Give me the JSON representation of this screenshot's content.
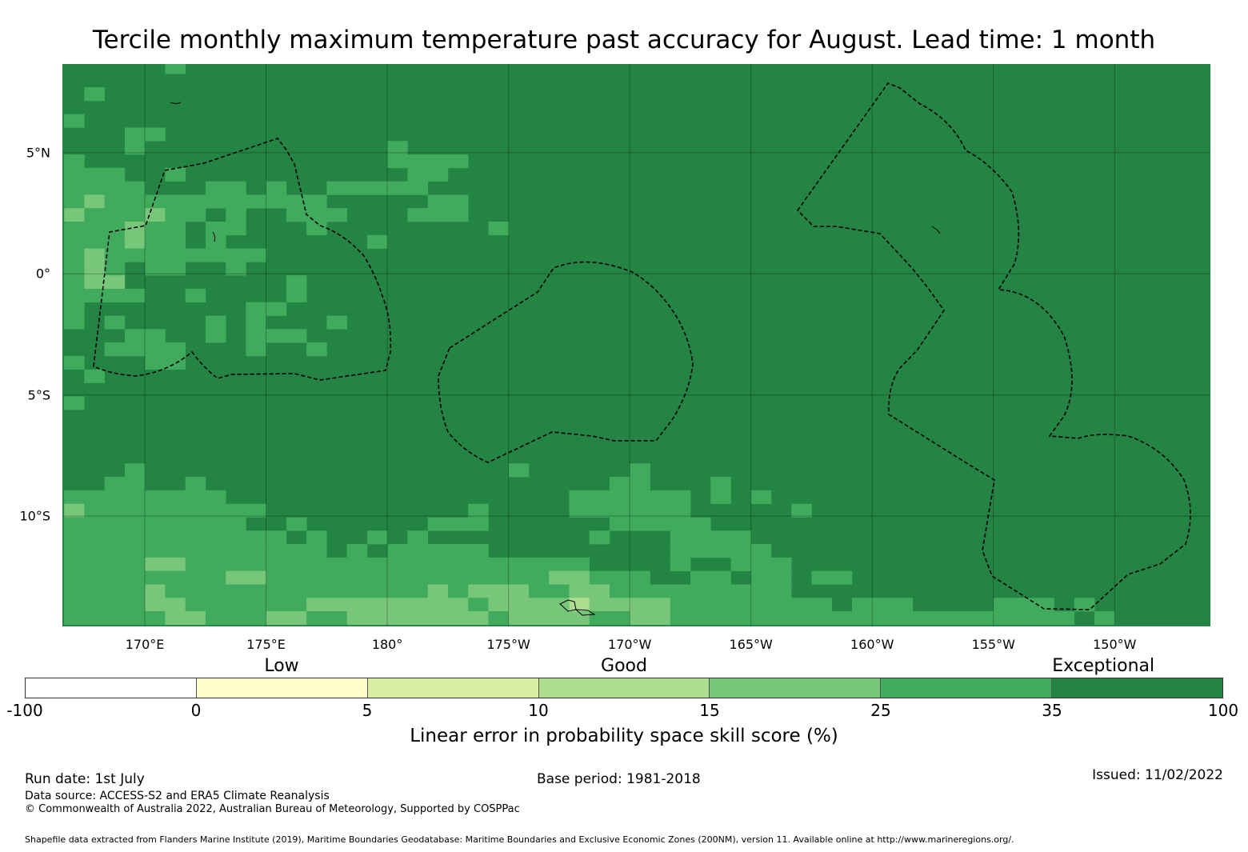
{
  "title": "Tercile monthly maximum temperature past accuracy for August. Lead time: 1 month",
  "map": {
    "lon_range": [
      166.6,
      213.95
    ],
    "lat_range": [
      -14.55,
      8.66
    ],
    "lon_ticks": [
      {
        "value": 170,
        "label": "170°E"
      },
      {
        "value": 175,
        "label": "175°E"
      },
      {
        "value": 180,
        "label": "180°"
      },
      {
        "value": 185,
        "label": "175°W"
      },
      {
        "value": 190,
        "label": "170°W"
      },
      {
        "value": 195,
        "label": "165°W"
      },
      {
        "value": 200,
        "label": "160°W"
      },
      {
        "value": 205,
        "label": "155°W"
      },
      {
        "value": 210,
        "label": "150°W"
      }
    ],
    "lat_ticks": [
      {
        "value": 5,
        "label": "5°N"
      },
      {
        "value": 0,
        "label": "0°"
      },
      {
        "value": -5,
        "label": "5°S"
      },
      {
        "value": -10,
        "label": "10°S"
      }
    ],
    "grid": {
      "lon_start": 166.67,
      "lat_start": 8.81,
      "dlon": 0.8333,
      "dlat": 0.5545,
      "default": "D"
    },
    "category_colors": {
      "D": "#238443",
      "M": "#41ab5d",
      "L": "#78c679",
      "P": "#addd8e"
    },
    "cells": [
      [
        0,
        5,
        5,
        "M"
      ],
      [
        2,
        1,
        1,
        "M"
      ],
      [
        4,
        0,
        0,
        "M"
      ],
      [
        5,
        3,
        4,
        "M"
      ],
      [
        6,
        3,
        3,
        "M"
      ],
      [
        6,
        16,
        16,
        "M"
      ],
      [
        7,
        0,
        0,
        "M"
      ],
      [
        7,
        16,
        19,
        "M"
      ],
      [
        8,
        0,
        2,
        "M"
      ],
      [
        8,
        5,
        5,
        "M"
      ],
      [
        8,
        17,
        18,
        "M"
      ],
      [
        9,
        0,
        3,
        "M"
      ],
      [
        9,
        7,
        8,
        "M"
      ],
      [
        9,
        10,
        10,
        "M"
      ],
      [
        9,
        13,
        17,
        "M"
      ],
      [
        10,
        0,
        0,
        "M"
      ],
      [
        10,
        1,
        1,
        "L"
      ],
      [
        10,
        2,
        12,
        "M"
      ],
      [
        10,
        18,
        19,
        "M"
      ],
      [
        11,
        0,
        0,
        "L"
      ],
      [
        11,
        1,
        3,
        "M"
      ],
      [
        11,
        4,
        4,
        "L"
      ],
      [
        11,
        5,
        6,
        "M"
      ],
      [
        11,
        8,
        8,
        "M"
      ],
      [
        11,
        11,
        13,
        "M"
      ],
      [
        11,
        17,
        19,
        "M"
      ],
      [
        12,
        0,
        2,
        "M"
      ],
      [
        12,
        3,
        3,
        "L"
      ],
      [
        12,
        4,
        5,
        "M"
      ],
      [
        12,
        7,
        8,
        "M"
      ],
      [
        12,
        12,
        12,
        "M"
      ],
      [
        12,
        21,
        21,
        "M"
      ],
      [
        13,
        0,
        2,
        "M"
      ],
      [
        13,
        3,
        3,
        "L"
      ],
      [
        13,
        4,
        5,
        "M"
      ],
      [
        13,
        7,
        7,
        "M"
      ],
      [
        13,
        15,
        15,
        "M"
      ],
      [
        14,
        0,
        0,
        "M"
      ],
      [
        14,
        1,
        1,
        "L"
      ],
      [
        14,
        2,
        9,
        "M"
      ],
      [
        15,
        0,
        0,
        "M"
      ],
      [
        15,
        1,
        1,
        "L"
      ],
      [
        15,
        2,
        2,
        "M"
      ],
      [
        15,
        4,
        5,
        "M"
      ],
      [
        15,
        8,
        8,
        "M"
      ],
      [
        16,
        0,
        0,
        "M"
      ],
      [
        16,
        1,
        2,
        "L"
      ],
      [
        16,
        11,
        11,
        "M"
      ],
      [
        17,
        0,
        3,
        "M"
      ],
      [
        17,
        6,
        6,
        "M"
      ],
      [
        17,
        11,
        11,
        "M"
      ],
      [
        18,
        0,
        0,
        "M"
      ],
      [
        18,
        9,
        10,
        "M"
      ],
      [
        19,
        0,
        0,
        "M"
      ],
      [
        19,
        2,
        2,
        "M"
      ],
      [
        19,
        7,
        7,
        "M"
      ],
      [
        19,
        9,
        9,
        "M"
      ],
      [
        19,
        13,
        13,
        "M"
      ],
      [
        20,
        3,
        4,
        "M"
      ],
      [
        20,
        7,
        7,
        "M"
      ],
      [
        20,
        9,
        11,
        "M"
      ],
      [
        21,
        2,
        5,
        "M"
      ],
      [
        21,
        9,
        9,
        "M"
      ],
      [
        21,
        12,
        12,
        "M"
      ],
      [
        22,
        0,
        0,
        "M"
      ],
      [
        22,
        4,
        5,
        "M"
      ],
      [
        23,
        1,
        1,
        "M"
      ],
      [
        25,
        0,
        0,
        "M"
      ],
      [
        30,
        3,
        3,
        "M"
      ],
      [
        30,
        22,
        22,
        "M"
      ],
      [
        30,
        28,
        28,
        "M"
      ],
      [
        31,
        2,
        3,
        "M"
      ],
      [
        31,
        6,
        6,
        "M"
      ],
      [
        31,
        27,
        28,
        "M"
      ],
      [
        31,
        32,
        32,
        "M"
      ],
      [
        32,
        0,
        7,
        "M"
      ],
      [
        32,
        25,
        30,
        "M"
      ],
      [
        32,
        32,
        32,
        "M"
      ],
      [
        32,
        34,
        34,
        "M"
      ],
      [
        33,
        0,
        0,
        "L"
      ],
      [
        33,
        1,
        9,
        "M"
      ],
      [
        33,
        20,
        20,
        "M"
      ],
      [
        33,
        25,
        30,
        "M"
      ],
      [
        33,
        36,
        36,
        "M"
      ],
      [
        34,
        0,
        8,
        "M"
      ],
      [
        34,
        11,
        11,
        "M"
      ],
      [
        34,
        18,
        20,
        "M"
      ],
      [
        34,
        27,
        31,
        "M"
      ],
      [
        35,
        0,
        10,
        "M"
      ],
      [
        35,
        12,
        12,
        "M"
      ],
      [
        35,
        15,
        15,
        "M"
      ],
      [
        35,
        17,
        17,
        "M"
      ],
      [
        35,
        26,
        26,
        "M"
      ],
      [
        35,
        30,
        33,
        "M"
      ],
      [
        36,
        0,
        12,
        "M"
      ],
      [
        36,
        14,
        14,
        "M"
      ],
      [
        36,
        16,
        20,
        "M"
      ],
      [
        36,
        30,
        34,
        "M"
      ],
      [
        37,
        0,
        3,
        "M"
      ],
      [
        37,
        4,
        5,
        "L"
      ],
      [
        37,
        6,
        25,
        "M"
      ],
      [
        37,
        30,
        30,
        "M"
      ],
      [
        37,
        33,
        35,
        "M"
      ],
      [
        38,
        0,
        7,
        "M"
      ],
      [
        38,
        8,
        9,
        "L"
      ],
      [
        38,
        10,
        23,
        "M"
      ],
      [
        38,
        24,
        25,
        "L"
      ],
      [
        38,
        26,
        28,
        "M"
      ],
      [
        38,
        31,
        32,
        "M"
      ],
      [
        38,
        34,
        35,
        "M"
      ],
      [
        38,
        37,
        38,
        "M"
      ],
      [
        39,
        0,
        3,
        "M"
      ],
      [
        39,
        4,
        4,
        "L"
      ],
      [
        39,
        5,
        17,
        "M"
      ],
      [
        39,
        18,
        18,
        "L"
      ],
      [
        39,
        19,
        19,
        "M"
      ],
      [
        39,
        20,
        22,
        "L"
      ],
      [
        39,
        23,
        24,
        "M"
      ],
      [
        39,
        25,
        26,
        "L"
      ],
      [
        39,
        27,
        35,
        "M"
      ],
      [
        40,
        0,
        3,
        "M"
      ],
      [
        40,
        4,
        5,
        "L"
      ],
      [
        40,
        6,
        11,
        "M"
      ],
      [
        40,
        12,
        19,
        "L"
      ],
      [
        40,
        20,
        20,
        "M"
      ],
      [
        40,
        21,
        24,
        "L"
      ],
      [
        40,
        25,
        25,
        "P"
      ],
      [
        40,
        26,
        29,
        "L"
      ],
      [
        40,
        30,
        37,
        "M"
      ],
      [
        40,
        39,
        41,
        "M"
      ],
      [
        40,
        46,
        48,
        "M"
      ],
      [
        40,
        50,
        50,
        "M"
      ],
      [
        41,
        0,
        4,
        "M"
      ],
      [
        41,
        5,
        6,
        "L"
      ],
      [
        41,
        7,
        9,
        "M"
      ],
      [
        41,
        10,
        11,
        "L"
      ],
      [
        41,
        12,
        13,
        "M"
      ],
      [
        41,
        14,
        20,
        "L"
      ],
      [
        41,
        21,
        21,
        "M"
      ],
      [
        41,
        22,
        25,
        "L"
      ],
      [
        41,
        26,
        27,
        "M"
      ],
      [
        41,
        28,
        29,
        "L"
      ],
      [
        41,
        30,
        49,
        "M"
      ],
      [
        41,
        51,
        51,
        "M"
      ]
    ]
  },
  "colorbar": {
    "colors": [
      "#ffffff",
      "#ffffcc",
      "#d9f0a3",
      "#addd8e",
      "#78c679",
      "#41ab5d",
      "#238443"
    ],
    "bounds": [
      "-100",
      "0",
      "5",
      "10",
      "15",
      "25",
      "35",
      "100"
    ],
    "categories": [
      {
        "label": "Low",
        "at_segment": 1.5
      },
      {
        "label": "Good",
        "at_segment": 3.5
      },
      {
        "label": "Exceptional",
        "at_segment": 6.3
      }
    ],
    "label": "Linear error in probability space skill score (%)"
  },
  "footer": {
    "run_date": "Run date: 1st July",
    "base_period": "Base period: 1981-2018",
    "issued": "Issued: 11/02/2022",
    "data_source": "Data source: ACCESS-S2 and ERA5 Climate Reanalysis",
    "copyright": "© Commonwealth of Australia 2022, Australian Bureau of Meteorology, Supported by COSPPac",
    "shapefile": "Shapefile data extracted from Flanders Marine Institute (2019), Maritime Boundaries Geodatabase: Maritime Boundaries and Exclusive Economic Zones (200NM), version 11. Available online at http://www.marineregions.org/."
  }
}
